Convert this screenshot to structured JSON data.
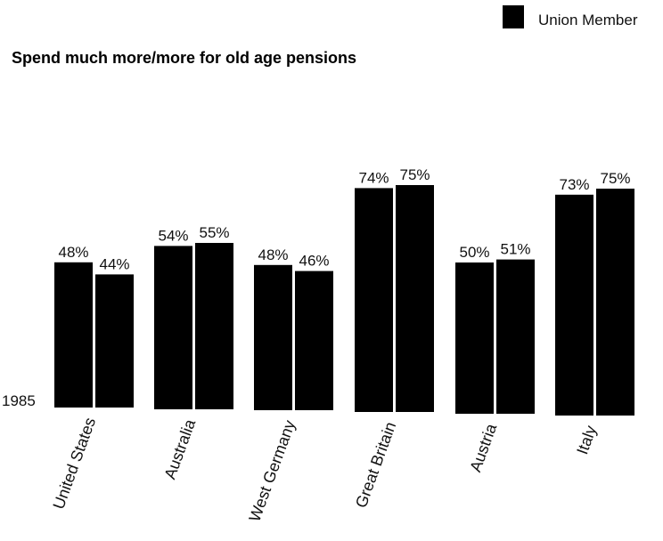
{
  "chart_data": {
    "type": "bar",
    "title": "Spend much more/more for old age pensions",
    "year_label": "1985",
    "categories": [
      "United States",
      "Australia",
      "West Germany",
      "Great Britain",
      "Austria",
      "Italy"
    ],
    "series": [
      {
        "values": [
          48,
          54,
          48,
          74,
          50,
          73
        ]
      },
      {
        "values": [
          44,
          55,
          46,
          75,
          51,
          75
        ]
      }
    ],
    "value_labels": [
      [
        "48%",
        "54%",
        "48%",
        "74%",
        "50%",
        "73%"
      ],
      [
        "44%",
        "55%",
        "46%",
        "75%",
        "51%",
        "75%"
      ]
    ],
    "legend": {
      "entries": [
        "Union Member"
      ],
      "position": "top-right"
    },
    "ylim": [
      0,
      100
    ],
    "grid": false
  },
  "colors": {
    "bar": "#000000",
    "text": "#111111",
    "background": "#ffffff"
  }
}
